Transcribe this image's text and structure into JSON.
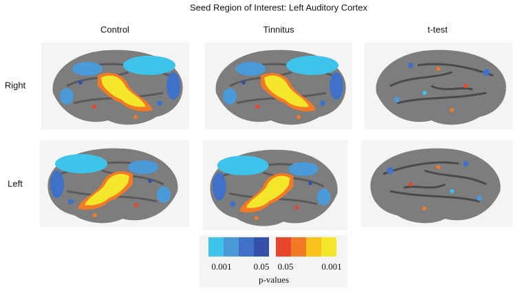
{
  "figure": {
    "title": "Seed Region of Interest: Left Auditory Cortex",
    "columns": [
      "Control",
      "Tinnitus",
      "t-test"
    ],
    "rows": [
      "Right",
      "Left"
    ],
    "colorbar": {
      "labels": [
        "0.001",
        "0.05",
        "0.05",
        "0.001"
      ],
      "title": "p-values"
    }
  }
}
